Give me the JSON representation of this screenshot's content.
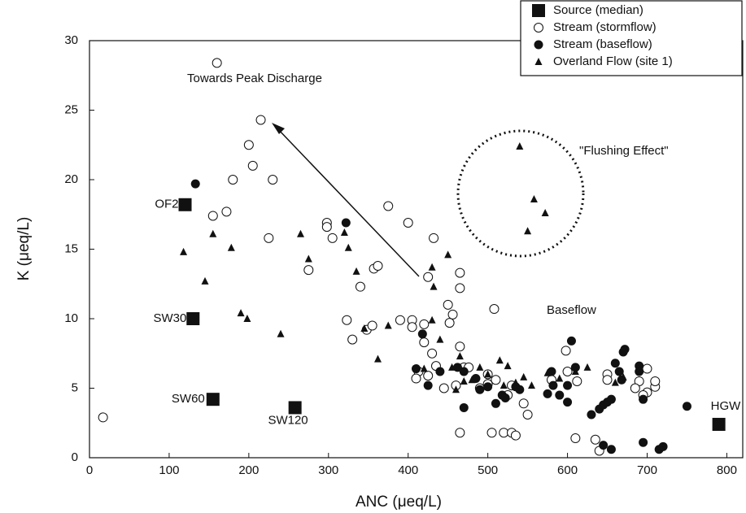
{
  "chart_data": {
    "type": "scatter",
    "xlabel": "ANC (μeq/L)",
    "ylabel": "K (μeq/L)",
    "xlim": [
      0,
      820
    ],
    "ylim": [
      0,
      30
    ],
    "xticks": [
      0,
      100,
      200,
      300,
      400,
      500,
      600,
      700,
      800
    ],
    "yticks": [
      0,
      5,
      10,
      15,
      20,
      25,
      30
    ],
    "legend": "upper right",
    "annotations": [
      "Towards Peak Discharge",
      "\"Flushing Effect\"",
      "Baseflow"
    ],
    "series": [
      {
        "name": "Source (median)",
        "marker": "square",
        "color": "#111111",
        "x": [
          120,
          130,
          155,
          258,
          790
        ],
        "values": [
          18.2,
          10,
          4.2,
          3.6,
          2.4
        ],
        "point_labels": [
          "OF2",
          "SW30",
          "SW60",
          "SW120",
          "HGW"
        ]
      },
      {
        "name": "Stream (stormflow)",
        "marker": "open-circle",
        "color": "#111111",
        "x": [
          17,
          160,
          215,
          200,
          205,
          230,
          180,
          172,
          155,
          225,
          298,
          298,
          305,
          275,
          375,
          400,
          432,
          357,
          362,
          340,
          465,
          465,
          425,
          323,
          330,
          348,
          355,
          390,
          405,
          405,
          420,
          450,
          452,
          456,
          508,
          413,
          420,
          430,
          435,
          410,
          425,
          445,
          460,
          465,
          470,
          476,
          490,
          500,
          500,
          525,
          545,
          550,
          465,
          505,
          520,
          530,
          535,
          598,
          612,
          610,
          635,
          640,
          600,
          650,
          700,
          690,
          700,
          710,
          710,
          685,
          695,
          650,
          580,
          530,
          510
        ],
        "values": [
          2.9,
          28.4,
          24.3,
          22.5,
          21,
          20,
          20,
          17.7,
          17.4,
          15.8,
          16.9,
          16.6,
          15.8,
          13.5,
          18.1,
          16.9,
          15.8,
          13.6,
          13.8,
          12.3,
          13.3,
          12.2,
          13,
          9.9,
          8.5,
          9.2,
          9.5,
          9.9,
          9.9,
          9.4,
          9.6,
          11,
          9.7,
          10.3,
          10.7,
          6.2,
          8.3,
          7.5,
          6.6,
          5.7,
          5.9,
          5,
          5.2,
          8,
          6.5,
          6.5,
          5,
          5.3,
          6,
          4.5,
          3.9,
          3.1,
          1.8,
          1.8,
          1.8,
          1.8,
          1.6,
          7.7,
          5.5,
          1.4,
          1.3,
          0.5,
          6.2,
          6,
          6.4,
          5.5,
          4.7,
          5.1,
          5.5,
          5,
          4.5,
          5.6,
          5.6,
          5.2,
          5.6
        ]
      },
      {
        "name": "Stream (baseflow)",
        "marker": "filled-circle",
        "color": "#111111",
        "x": [
          133,
          322,
          418,
          410,
          425,
          440,
          470,
          462,
          470,
          485,
          490,
          500,
          510,
          518,
          522,
          535,
          540,
          575,
          580,
          582,
          590,
          600,
          605,
          600,
          610,
          630,
          640,
          645,
          650,
          655,
          660,
          665,
          670,
          672,
          668,
          690,
          695,
          695,
          750,
          715,
          720,
          645,
          655,
          690
        ],
        "values": [
          19.7,
          16.9,
          8.9,
          6.4,
          5.2,
          6.2,
          3.6,
          6.5,
          6.2,
          5.7,
          4.9,
          5.1,
          3.9,
          4.5,
          4.3,
          5.1,
          4.9,
          4.6,
          6.2,
          5.2,
          4.5,
          5.2,
          8.4,
          4,
          6.5,
          3.1,
          3.5,
          3.8,
          4,
          4.2,
          6.8,
          6.2,
          7.6,
          7.8,
          5.6,
          6.6,
          4.2,
          1.1,
          3.7,
          0.6,
          0.8,
          0.9,
          0.6,
          6.2
        ]
      },
      {
        "name": "Overland Flow (site 1)",
        "marker": "triangle",
        "color": "#111111",
        "x": [
          118,
          155,
          178,
          145,
          190,
          198,
          240,
          265,
          275,
          320,
          325,
          335,
          362,
          375,
          345,
          430,
          432,
          450,
          430,
          440,
          455,
          465,
          460,
          470,
          480,
          490,
          500,
          515,
          525,
          535,
          545,
          555,
          575,
          590,
          610,
          625,
          660,
          670,
          540,
          558,
          572,
          550,
          420,
          520
        ],
        "values": [
          14.8,
          16.1,
          15.1,
          12.7,
          10.4,
          10,
          8.9,
          16.1,
          14.3,
          16.2,
          15.1,
          13.4,
          7.1,
          9.5,
          9.3,
          13.7,
          12.3,
          14.6,
          9.9,
          8.5,
          6.5,
          7.3,
          4.9,
          5.5,
          5.6,
          6.5,
          6,
          7,
          6.6,
          5.4,
          5.8,
          5.2,
          6.1,
          5.7,
          6.2,
          6.5,
          5.4,
          5.8,
          22.4,
          18.6,
          17.6,
          16.3,
          6.4,
          5.2
        ]
      }
    ]
  }
}
